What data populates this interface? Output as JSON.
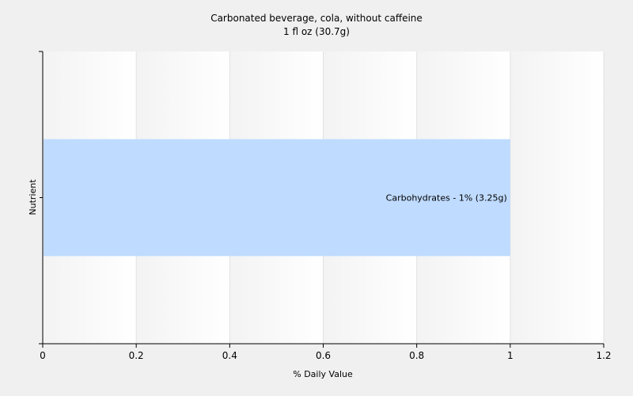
{
  "chart_data": {
    "type": "bar",
    "orientation": "horizontal",
    "title": "Carbonated beverage, cola, without caffeine",
    "subtitle": "1 fl oz (30.7g)",
    "xlabel": "% Daily Value",
    "ylabel": "Nutrient",
    "xlim": [
      0,
      1.2
    ],
    "xticks": [
      "0",
      "0.2",
      "0.4",
      "0.6",
      "0.8",
      "1",
      "1.2"
    ],
    "grid": true,
    "categories": [
      "Carbohydrates"
    ],
    "values": [
      1
    ],
    "bar_labels": [
      "Carbohydrates - 1% (3.25g)"
    ],
    "bar_color": "#bfdbff"
  }
}
